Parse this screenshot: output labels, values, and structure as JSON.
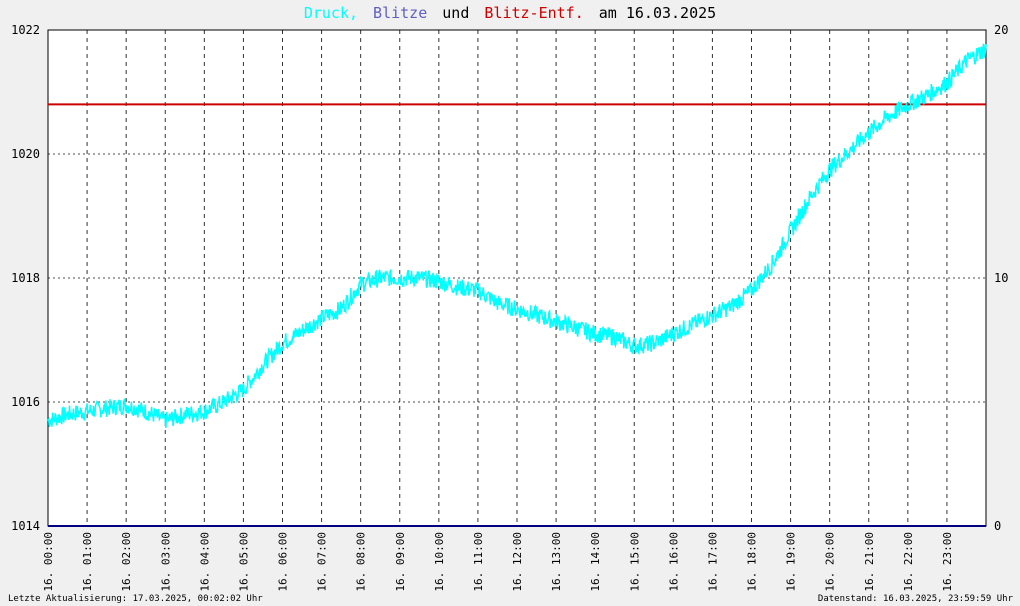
{
  "title": {
    "part1": "Druck,",
    "part2": "Blitze",
    "part3": "und",
    "part4": "Blitz-Entf.",
    "part5": "am 16.03.2025"
  },
  "colors": {
    "druck": "#00ffff",
    "blitze": "#6060c0",
    "entf": "#cc0000",
    "zero_line": "#000080",
    "plot_bg": "#ffffff",
    "grid": "#000000"
  },
  "footer": {
    "left": "Letzte Aktualisierung: 17.03.2025, 00:02:02 Uhr",
    "right": "Datenstand: 16.03.2025, 23:59:59 Uhr"
  },
  "chart_data": {
    "type": "line",
    "y_left": {
      "min": 1014,
      "max": 1022,
      "ticks": [
        "1014",
        "1016",
        "1018",
        "1020",
        "1022"
      ]
    },
    "y_right": {
      "min": 0,
      "max": 20,
      "ticks": [
        "0",
        "10",
        "20"
      ],
      "highlight": "10"
    },
    "x_ticks": [
      "16. 00:00",
      "16. 01:00",
      "16. 02:00",
      "16. 03:00",
      "16. 04:00",
      "16. 05:00",
      "16. 06:00",
      "16. 07:00",
      "16. 08:00",
      "16. 09:00",
      "16. 10:00",
      "16. 11:00",
      "16. 12:00",
      "16. 13:00",
      "16. 14:00",
      "16. 15:00",
      "16. 16:00",
      "16. 17:00",
      "16. 18:00",
      "16. 19:00",
      "16. 20:00",
      "16. 21:00",
      "16. 22:00",
      "16. 23:00"
    ],
    "series": [
      {
        "name": "Druck",
        "axis": "left",
        "x_hours": [
          0,
          0.5,
          1,
          1.5,
          2,
          2.5,
          3,
          3.5,
          4,
          4.5,
          5,
          5.5,
          6,
          6.5,
          7,
          7.5,
          8,
          8.5,
          9,
          9.5,
          10,
          10.5,
          11,
          11.5,
          12,
          12.5,
          13,
          13.5,
          14,
          14.5,
          15,
          15.5,
          16,
          16.5,
          17,
          17.5,
          18,
          18.5,
          19,
          19.5,
          20,
          20.5,
          21,
          21.5,
          22,
          22.5,
          23,
          23.5,
          24
        ],
        "values": [
          1015.7,
          1015.8,
          1015.85,
          1015.9,
          1015.95,
          1015.85,
          1015.7,
          1015.8,
          1015.85,
          1016.0,
          1016.2,
          1016.6,
          1016.95,
          1017.15,
          1017.35,
          1017.5,
          1017.9,
          1018.0,
          1018.0,
          1018.0,
          1017.95,
          1017.85,
          1017.8,
          1017.6,
          1017.5,
          1017.4,
          1017.3,
          1017.2,
          1017.1,
          1017.05,
          1016.9,
          1016.95,
          1017.1,
          1017.25,
          1017.4,
          1017.55,
          1017.8,
          1018.2,
          1018.75,
          1019.3,
          1019.75,
          1020.05,
          1020.35,
          1020.6,
          1020.8,
          1020.95,
          1021.15,
          1021.5,
          1021.7
        ]
      },
      {
        "name": "Blitze",
        "axis": "right",
        "x_hours": [
          0,
          24
        ],
        "values": [
          0,
          0
        ]
      },
      {
        "name": "Blitz-Entf.",
        "axis": "left",
        "x_hours": [
          0,
          24
        ],
        "values": [
          1020.8,
          1020.8
        ]
      }
    ]
  }
}
